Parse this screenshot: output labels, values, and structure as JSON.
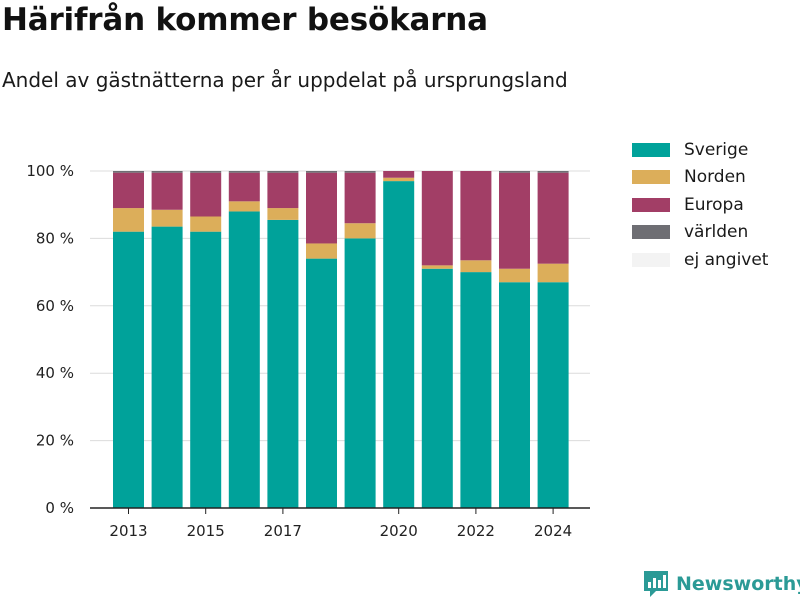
{
  "title": "Härifrån kommer besökarna",
  "subtitle": "Andel av gästnätterna per år uppdelat på ursprungsland",
  "brand": {
    "label": "Newsworthy",
    "icon": "newsworthy-logo-icon",
    "color": "#2b9a96"
  },
  "chart_data": {
    "type": "bar",
    "stacked": true,
    "categories": [
      "2013",
      "2014",
      "2015",
      "2016",
      "2017",
      "2018",
      "2019",
      "2020",
      "2021",
      "2022",
      "2023",
      "2024"
    ],
    "x_tick_labels": [
      "2013",
      "2015",
      "2017",
      "2020",
      "2022",
      "2024"
    ],
    "ylim": [
      0,
      100
    ],
    "y_ticks": [
      0,
      20,
      40,
      60,
      80,
      100
    ],
    "y_tick_labels": [
      "0 %",
      "20 %",
      "40 %",
      "60 %",
      "80 %",
      "100 %"
    ],
    "grid": true,
    "legend_position": "right",
    "series": [
      {
        "name": "Sverige",
        "color": "#00a29a",
        "values": [
          82,
          83.5,
          82,
          88,
          85.5,
          74,
          80,
          97,
          71,
          70,
          67,
          67
        ]
      },
      {
        "name": "Norden",
        "color": "#dcae5a",
        "values": [
          7,
          5,
          4.5,
          3,
          3.5,
          4.5,
          4.5,
          1,
          1,
          3.5,
          4,
          5.5
        ]
      },
      {
        "name": "Europa",
        "color": "#a23e66",
        "values": [
          10.5,
          11,
          13,
          8.5,
          10.5,
          21,
          15,
          2,
          28,
          26.5,
          28.5,
          27
        ]
      },
      {
        "name": "världen",
        "color": "#6e6e73",
        "values": [
          0.5,
          0.5,
          0.5,
          0.5,
          0.5,
          0.5,
          0.5,
          0,
          0,
          0,
          0.5,
          0.5
        ]
      },
      {
        "name": "ej angivet",
        "color": "#f3f3f3",
        "values": [
          0,
          0,
          0,
          0,
          0,
          0,
          0,
          0,
          0,
          0,
          0,
          0
        ]
      }
    ]
  }
}
